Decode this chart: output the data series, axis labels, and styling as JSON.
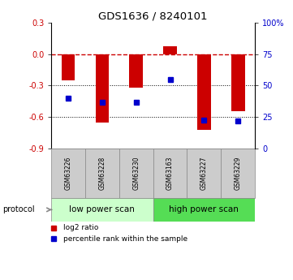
{
  "title": "GDS1636 / 8240101",
  "samples": [
    "GSM63226",
    "GSM63228",
    "GSM63230",
    "GSM63163",
    "GSM63227",
    "GSM63229"
  ],
  "log2_ratio": [
    -0.25,
    -0.65,
    -0.32,
    0.07,
    -0.72,
    -0.54
  ],
  "percentile_rank": [
    40,
    37,
    37,
    55,
    23,
    22
  ],
  "ylim_left": [
    -0.9,
    0.3
  ],
  "ylim_right": [
    0,
    100
  ],
  "bar_color": "#CC0000",
  "dot_color": "#0000CC",
  "bar_width": 0.4,
  "group_low_label": "low power scan",
  "group_low_color": "#CCFFCC",
  "group_high_label": "high power scan",
  "group_high_color": "#55DD55",
  "legend_items": [
    {
      "label": "log2 ratio",
      "color": "#CC0000"
    },
    {
      "label": "percentile rank within the sample",
      "color": "#0000CC"
    }
  ],
  "protocol_label": "protocol",
  "bg_color": "#FFFFFF",
  "yticks_left": [
    0.3,
    0.0,
    -0.3,
    -0.6,
    -0.9
  ],
  "yticks_right": [
    100,
    75,
    50,
    25,
    0
  ]
}
